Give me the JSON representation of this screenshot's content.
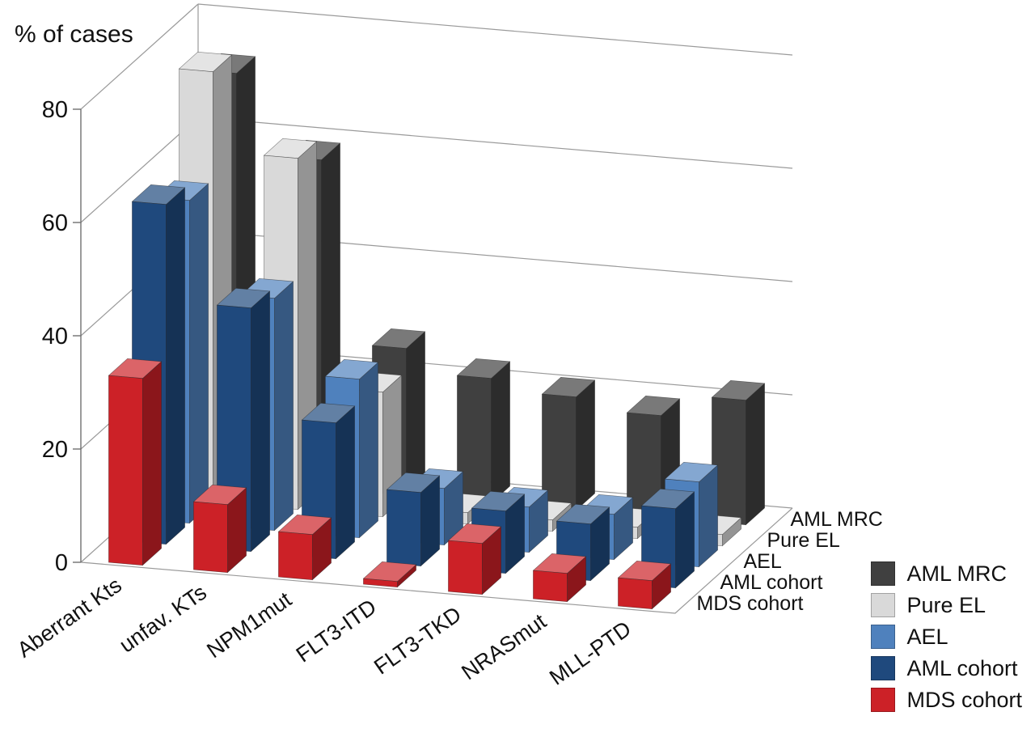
{
  "chart_data": {
    "type": "bar",
    "projection": "3d",
    "title": "",
    "ylabel": "% of cases",
    "xlabel": "",
    "ylim": [
      0,
      80
    ],
    "yticks": [
      0,
      20,
      40,
      60,
      80
    ],
    "grid": true,
    "background": "#ffffff",
    "categories": [
      "Aberrant Kts",
      "unfav. KTs",
      "NPM1mut",
      "FLT3-ITD",
      "FLT3-TKD",
      "NRASmut",
      "MLL-PTD"
    ],
    "series_order_note": "front row to back row",
    "series": [
      {
        "name": "MDS cohort",
        "color": "#cc2127",
        "values": [
          33,
          12,
          8,
          1,
          9,
          5,
          5
        ]
      },
      {
        "name": "AML cohort",
        "color": "#1f497d",
        "values": [
          60,
          43,
          24,
          13,
          11,
          10,
          14
        ]
      },
      {
        "name": "AEL",
        "color": "#4f81bd",
        "values": [
          57,
          41,
          28,
          10,
          8,
          8,
          15
        ]
      },
      {
        "name": "Pure EL",
        "color": "#d9d9d9",
        "values": [
          76,
          62,
          22,
          2,
          2,
          2,
          2
        ]
      },
      {
        "name": "AML MRC",
        "color": "#404040",
        "values": [
          72,
          58,
          26,
          22,
          20,
          18,
          22
        ]
      }
    ],
    "depth_axis_labels_front_to_back": [
      "MDS cohort",
      "AML cohort",
      "AEL",
      "Pure EL",
      "AML MRC"
    ],
    "legend": [
      "AML MRC",
      "Pure EL",
      "AEL",
      "AML cohort",
      "MDS cohort"
    ],
    "legend_position": "bottom-right"
  }
}
